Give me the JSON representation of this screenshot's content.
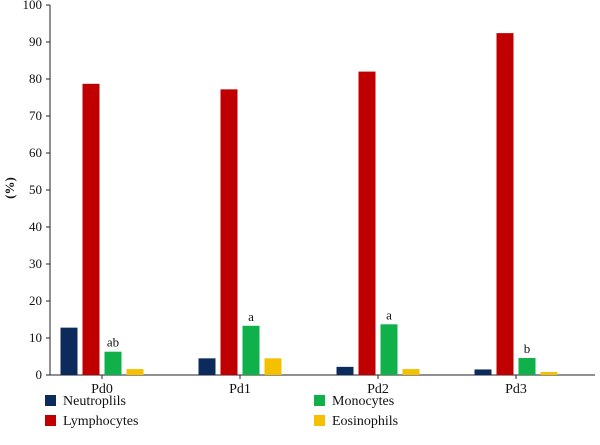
{
  "chart_data": {
    "type": "bar",
    "title": "",
    "xlabel": "",
    "ylabel": "(%)",
    "ylim": [
      0,
      100
    ],
    "yticks": [
      0,
      10,
      20,
      30,
      40,
      50,
      60,
      70,
      80,
      90,
      100
    ],
    "categories": [
      "Pd0",
      "Pd1",
      "Pd2",
      "Pd3"
    ],
    "series": [
      {
        "name": "Neutroplils",
        "color": "#0d2a5c",
        "values": [
          12.8,
          4.5,
          2.2,
          1.5
        ]
      },
      {
        "name": "Lymphocytes",
        "color": "#c00000",
        "values": [
          78.7,
          77.2,
          82.0,
          92.4
        ]
      },
      {
        "name": "Monocytes",
        "color": "#10b04a",
        "values": [
          6.3,
          13.3,
          13.7,
          4.6
        ]
      },
      {
        "name": "Eosinophils",
        "color": "#f5c000",
        "values": [
          1.6,
          4.5,
          1.6,
          0.8
        ]
      }
    ],
    "annotations": [
      {
        "series": "Monocytes",
        "category": "Pd0",
        "text": "ab"
      },
      {
        "series": "Monocytes",
        "category": "Pd1",
        "text": "a"
      },
      {
        "series": "Monocytes",
        "category": "Pd2",
        "text": "a"
      },
      {
        "series": "Monocytes",
        "category": "Pd3",
        "text": "b"
      }
    ],
    "grid": false,
    "legend_position": "bottom"
  }
}
